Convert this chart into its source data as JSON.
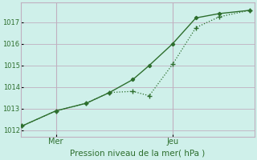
{
  "title": "",
  "xlabel": "Pression niveau de la mer( hPa )",
  "ylabel": "",
  "bg_color": "#cff0ea",
  "grid_color": "#c0b0c0",
  "line_color": "#2d6e2d",
  "ylim": [
    1011.7,
    1017.9
  ],
  "xlim": [
    0.0,
    10.0
  ],
  "yticks": [
    1012,
    1013,
    1014,
    1015,
    1016,
    1017
  ],
  "xtick_positions": [
    1.5,
    6.5
  ],
  "xtick_labels": [
    "Mer",
    "Jeu"
  ],
  "line1_x": [
    0.05,
    1.5,
    2.8,
    3.8,
    4.8,
    5.5,
    6.5,
    7.5,
    8.5,
    9.8
  ],
  "line1_y": [
    1012.2,
    1012.9,
    1013.25,
    1013.75,
    1013.8,
    1013.6,
    1015.05,
    1016.75,
    1017.25,
    1017.55
  ],
  "line2_x": [
    0.05,
    1.5,
    2.8,
    3.8,
    4.8,
    5.5,
    6.5,
    7.5,
    8.5,
    9.8
  ],
  "line2_y": [
    1012.2,
    1012.9,
    1013.25,
    1013.75,
    1014.35,
    1015.0,
    1016.0,
    1017.2,
    1017.4,
    1017.55
  ]
}
